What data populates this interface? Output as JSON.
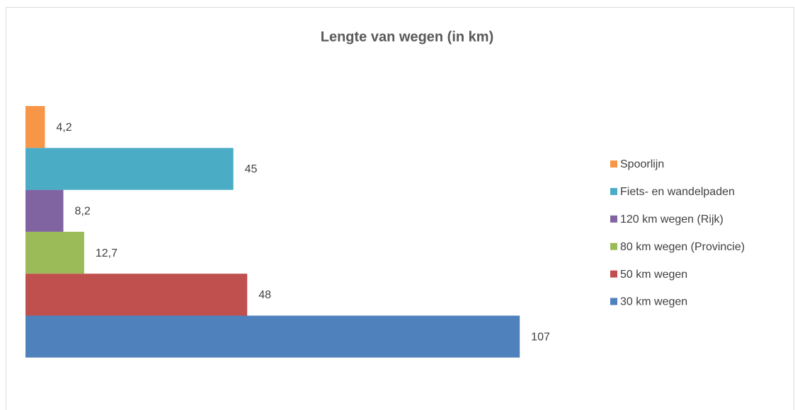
{
  "chart_data": {
    "type": "barh",
    "title": "Lengte van wegen (in km)",
    "xlim": [
      0,
      120
    ],
    "legend": "right",
    "series": [
      {
        "name": "Spoorlijn",
        "color": "#f79646",
        "values": [
          4.2
        ],
        "value_labels": [
          "4,2"
        ]
      },
      {
        "name": "Fiets- en wandelpaden",
        "color": "#4bacc6",
        "values": [
          45
        ]
      },
      {
        "name": "120 km wegen (Rijk)",
        "color": "#8064a2",
        "values": [
          8.2
        ],
        "value_labels": [
          "8,2"
        ]
      },
      {
        "name": "80 km wegen (Provincie)",
        "color": "#9bbb59",
        "values": [
          12.7
        ],
        "value_labels": [
          "12,7"
        ]
      },
      {
        "name": "50 km wegen",
        "color": "#c0504d",
        "values": [
          48
        ]
      },
      {
        "name": "30 km wegen",
        "color": "#4f81bd",
        "values": [
          107
        ]
      }
    ]
  }
}
